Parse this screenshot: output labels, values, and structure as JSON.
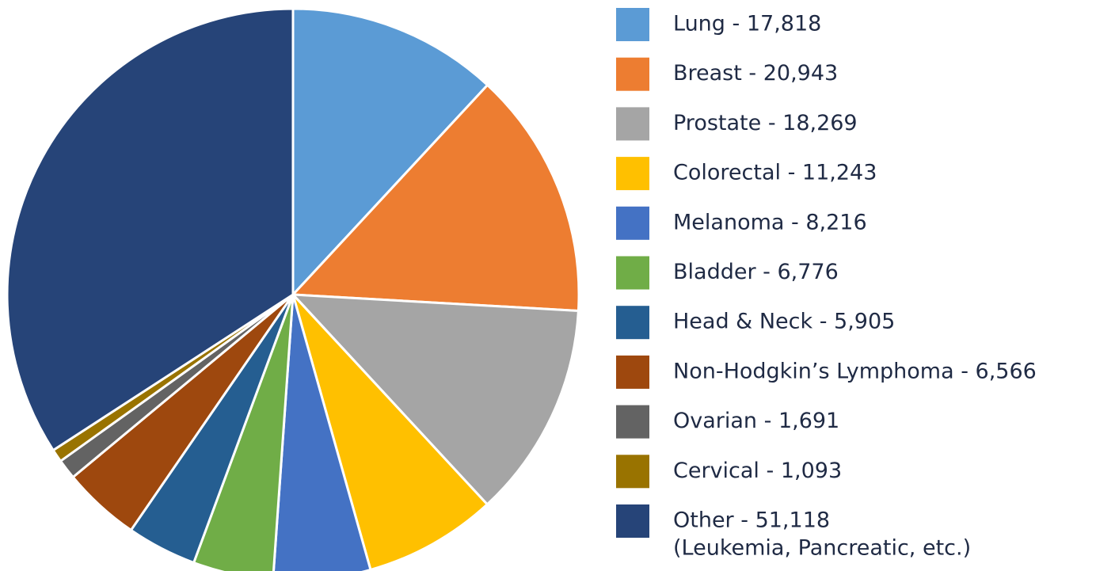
{
  "chart_data": {
    "type": "pie",
    "categories": [
      "Lung - 17,818",
      "Breast - 20,943",
      "Prostate - 18,269",
      "Colorectal - 11,243",
      "Melanoma - 8,216",
      "Bladder - 6,776",
      "Head & Neck - 5,905",
      "Non-Hodgkin’s Lymphoma - 6,566",
      "Ovarian - 1,691",
      "Cervical - 1,093",
      "Other - 51,118"
    ],
    "values": [
      17818,
      20943,
      18269,
      11243,
      8216,
      6776,
      5905,
      6566,
      1691,
      1093,
      51118
    ],
    "colors": [
      "#5b9bd5",
      "#ed7d31",
      "#a5a5a5",
      "#ffc000",
      "#4472c4",
      "#70ad47",
      "#255e91",
      "#9e480e",
      "#636363",
      "#997300",
      "#264478"
    ],
    "annotation": "(Leukemia, Pancreatic, etc.)"
  }
}
